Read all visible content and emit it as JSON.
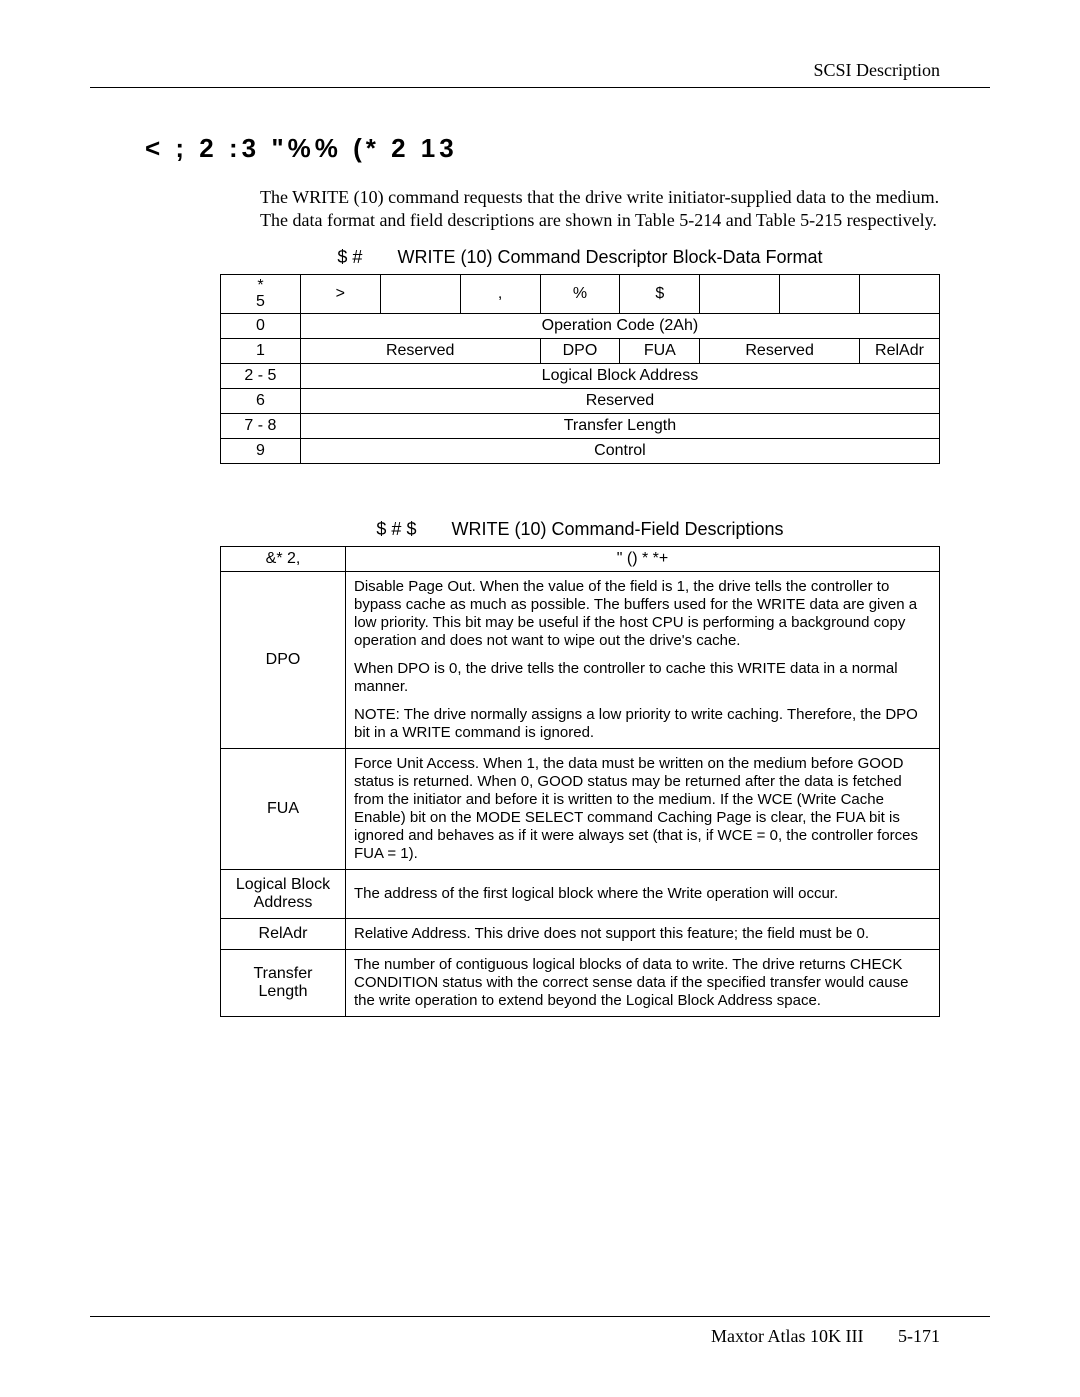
{
  "running_head": "SCSI Description",
  "section_heading": "<  ;          2 :3  \"%% (* 2  13",
  "body_para": "The WRITE (10) command requests that the drive write initiator-supplied data to the medium. The data format and field descriptions are shown in Table 5-214 and Table 5-215 respectively.",
  "table1": {
    "title_prefix": "$ #",
    "title": "WRITE (10) Command Descriptor Block-Data Format",
    "corner_top": "*",
    "corner_bottom": "5",
    "bit_headers": [
      ">",
      "",
      ",",
      "%",
      "$",
      "",
      "",
      ""
    ],
    "rows": [
      {
        "byte": "0",
        "spans": [
          {
            "text": "Operation Code (2Ah)",
            "cols": 8
          }
        ]
      },
      {
        "byte": "1",
        "spans": [
          {
            "text": "Reserved",
            "cols": 3
          },
          {
            "text": "DPO",
            "cols": 1
          },
          {
            "text": "FUA",
            "cols": 1
          },
          {
            "text": "Reserved",
            "cols": 2
          },
          {
            "text": "RelAdr",
            "cols": 1
          }
        ]
      },
      {
        "byte": "2 - 5",
        "spans": [
          {
            "text": "Logical Block Address",
            "cols": 8
          }
        ]
      },
      {
        "byte": "6",
        "spans": [
          {
            "text": "Reserved",
            "cols": 8
          }
        ]
      },
      {
        "byte": "7 - 8",
        "spans": [
          {
            "text": "Transfer Length",
            "cols": 8
          }
        ]
      },
      {
        "byte": "9",
        "spans": [
          {
            "text": "Control",
            "cols": 8
          }
        ]
      }
    ]
  },
  "table2": {
    "title_prefix": "$ # $",
    "title": "WRITE (10) Command-Field Descriptions",
    "header_field": "&* 2,",
    "header_desc": "\" () *  *+",
    "rows": [
      {
        "field": "DPO",
        "desc": [
          "Disable Page Out. When the value of the field is 1, the drive tells the controller to bypass cache as much as possible. The buffers used for the WRITE data are given a low priority. This bit may be useful if the host CPU is performing a background copy operation and does not want to wipe out the drive's cache.",
          "When DPO is 0, the drive tells the controller to cache this WRITE data in a normal manner.",
          "NOTE: The drive normally assigns a low priority to write caching. Therefore, the DPO bit in a WRITE command is ignored."
        ]
      },
      {
        "field": "FUA",
        "desc": [
          "Force Unit Access. When 1, the data must be written on the medium before GOOD status is returned. When 0, GOOD status may be returned after the data is fetched from the initiator and before it is written to the medium. If the WCE (Write Cache Enable) bit on the MODE SELECT command Caching Page is clear, the FUA bit is ignored and behaves as if it were always set (that is, if WCE = 0, the controller forces FUA = 1)."
        ]
      },
      {
        "field": "Logical Block Address",
        "desc": [
          "The address of the first logical block where the Write operation will occur."
        ]
      },
      {
        "field": "RelAdr",
        "desc": [
          "Relative Address. This drive does not support this feature; the field must be 0."
        ]
      },
      {
        "field": "Transfer Length",
        "desc": [
          "The number of contiguous logical blocks of data to write. The drive returns CHECK CONDITION status with the correct sense data if the specified transfer would cause the write operation to extend beyond the Logical Block Address space."
        ]
      }
    ]
  },
  "footer_product": "Maxtor Atlas 10K III",
  "footer_page": "5-171"
}
